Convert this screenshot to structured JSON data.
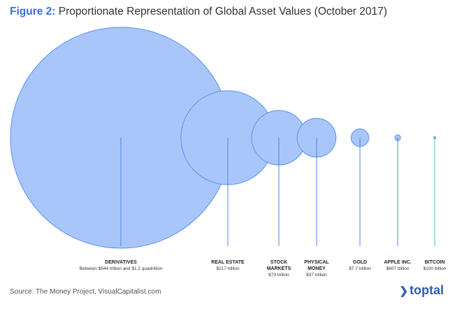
{
  "chart_data": {
    "type": "bubble",
    "title_label": "Figure 2:",
    "title": "Proportionate Representation of Global Asset Values (October 2017)",
    "categories": [
      "DERIVATIVES",
      "REAL ESTATE",
      "STOCK MARKETS",
      "PHYSICAL MONEY",
      "GOLD",
      "APPLE INC.",
      "BITCOIN"
    ],
    "values": [
      1200,
      217,
      73,
      37,
      7.7,
      0.807,
      0.1
    ],
    "value_labels": [
      "Between $544 trillion and $1.2 quadrillion",
      "$217 trillion",
      "$73 trillion",
      "$37 trillion",
      "$7.7 trillion",
      "$807 billion",
      "$100 billion"
    ],
    "color": "#a9c6fb",
    "highlight_color": "#3fc78c",
    "source": "Source: The Money Project, VisualCapitalist.com",
    "logo": "toptal"
  }
}
